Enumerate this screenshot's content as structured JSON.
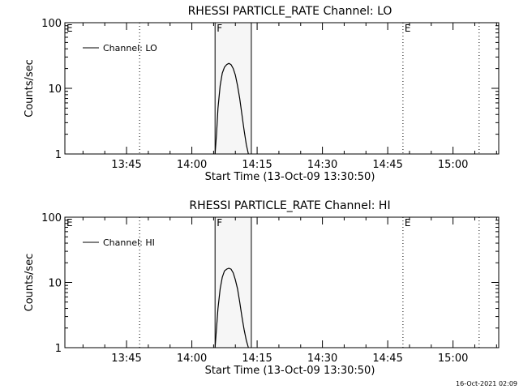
{
  "chart_data": [
    {
      "type": "line",
      "title": "RHESSI PARTICLE_RATE Channel: LO",
      "xlabel": "Start Time (13-Oct-09 13:30:50)",
      "ylabel": "Counts/sec",
      "yscale": "log",
      "ylim": [
        1,
        100
      ],
      "xlim": [
        "13:30:50",
        "15:10:30"
      ],
      "xticks": [
        "13:45",
        "14:00",
        "14:15",
        "14:30",
        "14:45",
        "15:00"
      ],
      "yticks": [
        "1",
        "10",
        "100"
      ],
      "legend": {
        "entry": "Channel: LO",
        "placement": "top-left"
      },
      "markers": [
        {
          "label": "E",
          "time": "13:30:50",
          "style": "dotted"
        },
        {
          "label": "",
          "time": "13:48:00",
          "style": "dotted"
        },
        {
          "label": "F",
          "time": "14:05:20",
          "style": "solid"
        },
        {
          "label": "",
          "time": "14:13:40",
          "style": "solid"
        },
        {
          "label": "E",
          "time": "14:48:30",
          "style": "dotted"
        },
        {
          "label": "",
          "time": "15:06:00",
          "style": "dotted"
        }
      ],
      "series": [
        {
          "x": [
            "14:05:20",
            "14:05:40",
            "14:06:00",
            "14:06:30",
            "14:07:00",
            "14:07:30",
            "14:08:00",
            "14:08:30",
            "14:09:00",
            "14:09:30",
            "14:10:00",
            "14:10:30",
            "14:11:00",
            "14:11:30",
            "14:12:00",
            "14:12:30",
            "14:13:00"
          ],
          "y": [
            1,
            2,
            5,
            11,
            17,
            21,
            23,
            24,
            23,
            20,
            16,
            11,
            7,
            4,
            2.3,
            1.4,
            1
          ]
        }
      ]
    },
    {
      "type": "line",
      "title": "RHESSI PARTICLE_RATE Channel: HI",
      "xlabel": "Start Time (13-Oct-09 13:30:50)",
      "ylabel": "Counts/sec",
      "yscale": "log",
      "ylim": [
        1,
        100
      ],
      "xlim": [
        "13:30:50",
        "15:10:30"
      ],
      "xticks": [
        "13:45",
        "14:00",
        "14:15",
        "14:30",
        "14:45",
        "15:00"
      ],
      "yticks": [
        "1",
        "10",
        "100"
      ],
      "legend": {
        "entry": "Channel: HI",
        "placement": "top-left"
      },
      "markers": [
        {
          "label": "E",
          "time": "13:30:50",
          "style": "dotted"
        },
        {
          "label": "",
          "time": "13:48:00",
          "style": "dotted"
        },
        {
          "label": "F",
          "time": "14:05:20",
          "style": "solid"
        },
        {
          "label": "",
          "time": "14:13:40",
          "style": "solid"
        },
        {
          "label": "E",
          "time": "14:48:30",
          "style": "dotted"
        },
        {
          "label": "",
          "time": "15:06:00",
          "style": "dotted"
        }
      ],
      "series": [
        {
          "x": [
            "14:05:20",
            "14:05:40",
            "14:06:00",
            "14:06:30",
            "14:07:00",
            "14:07:30",
            "14:08:00",
            "14:08:30",
            "14:09:00",
            "14:09:30",
            "14:10:00",
            "14:10:30",
            "14:11:00",
            "14:11:30",
            "14:12:00",
            "14:12:30",
            "14:13:00"
          ],
          "y": [
            1,
            2,
            4,
            8,
            12,
            15,
            16,
            16.5,
            16,
            14,
            11,
            8,
            5,
            3,
            1.9,
            1.3,
            1
          ]
        }
      ]
    }
  ],
  "footer": {
    "timestamp": "16-Oct-2021 02:09"
  }
}
